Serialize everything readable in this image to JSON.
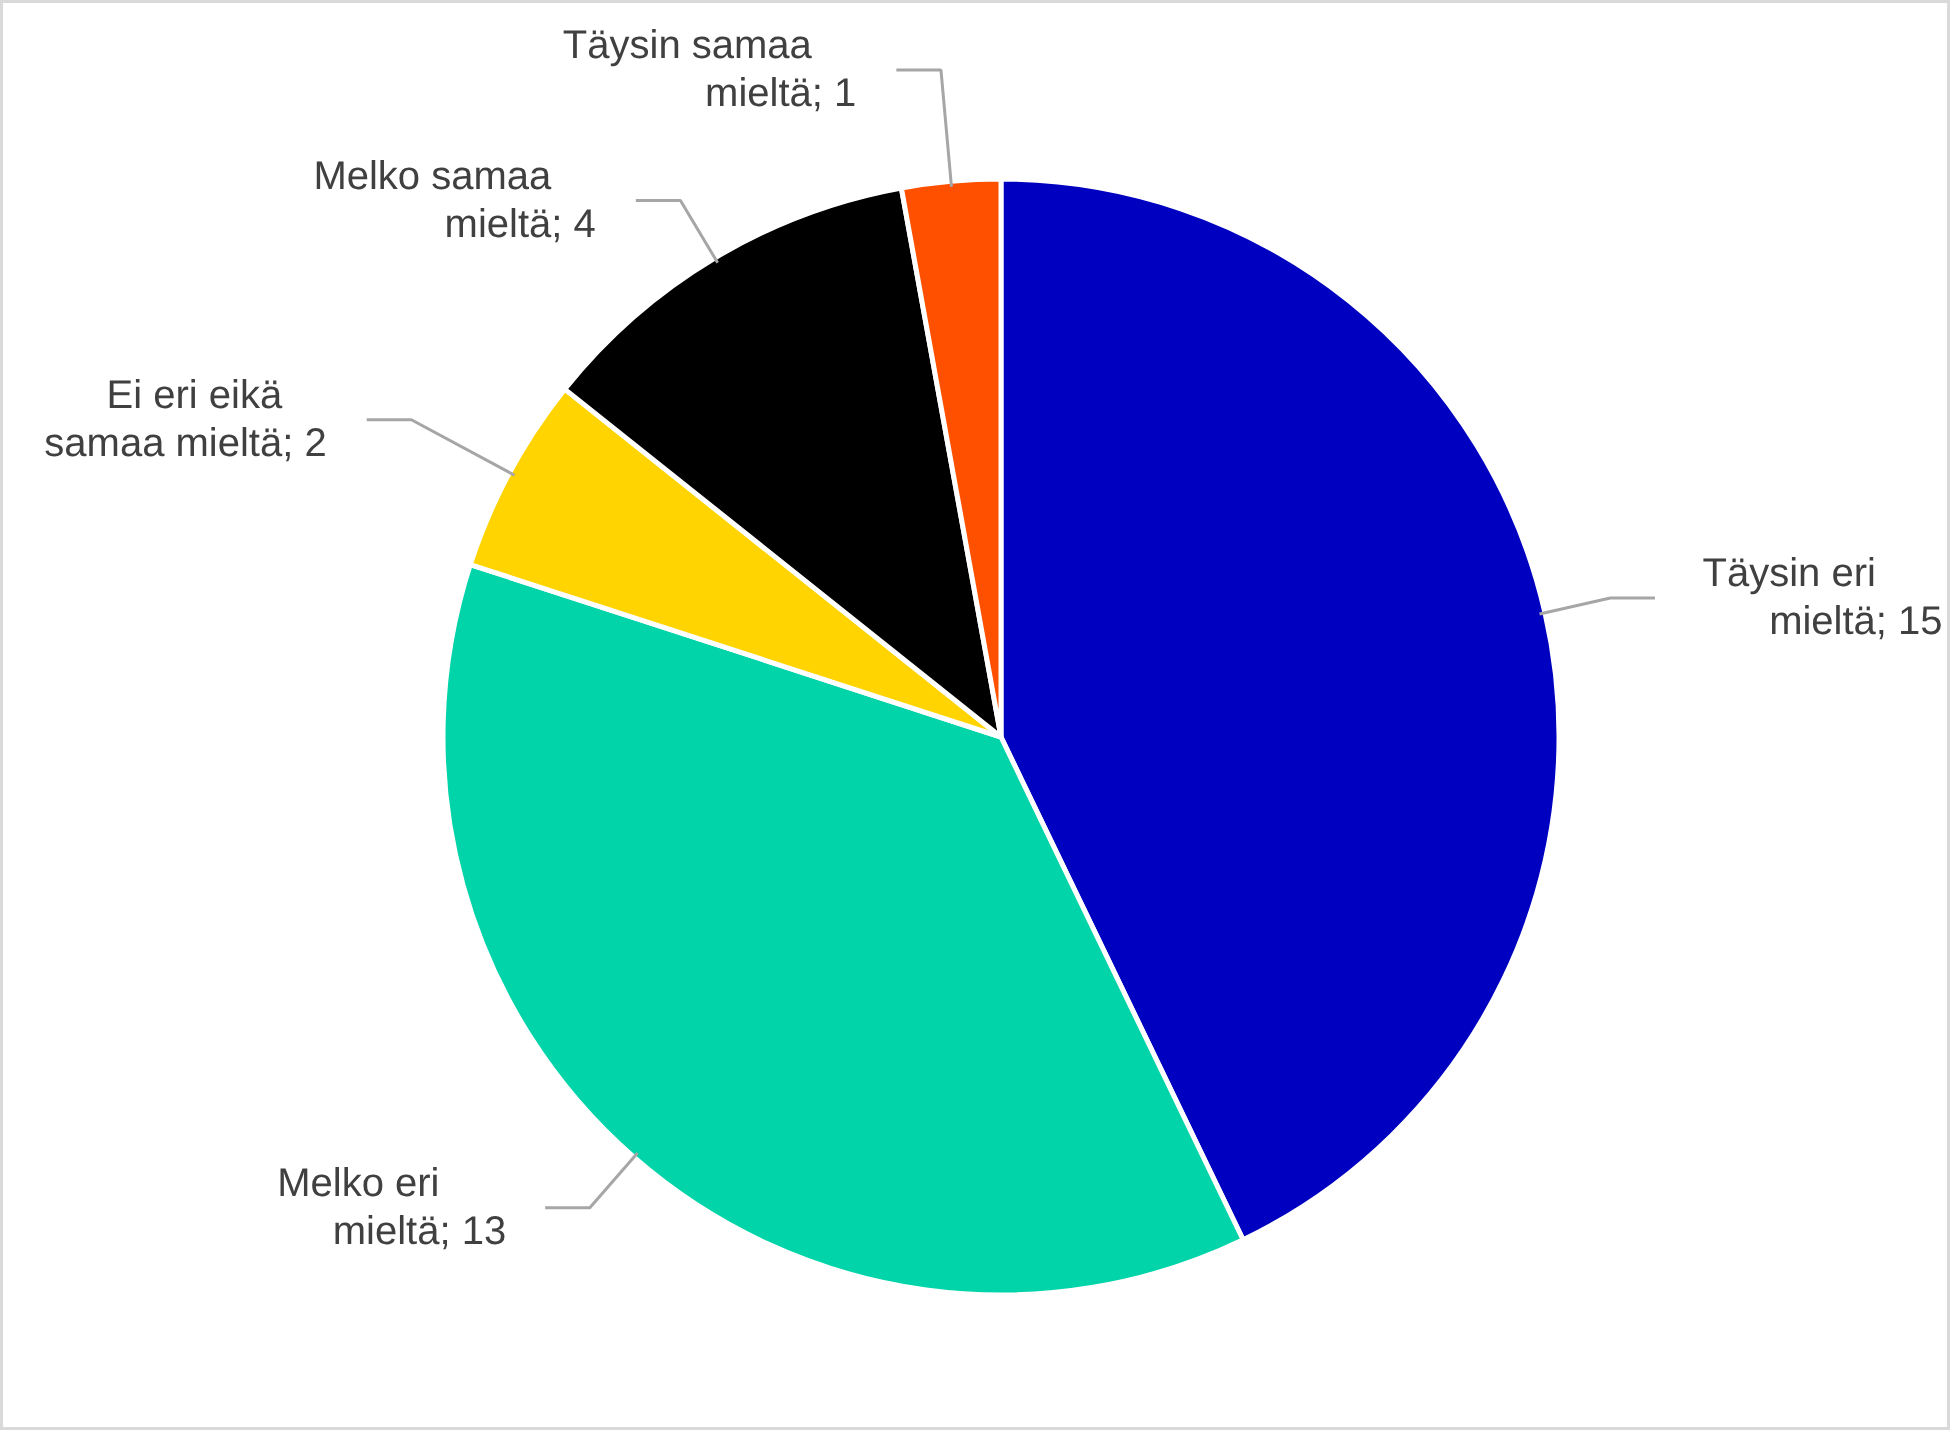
{
  "chart_data": {
    "type": "pie",
    "categories": [
      "Täysin eri mieltä",
      "Melko eri mieltä",
      "Ei eri eikä samaa mieltä",
      "Melko samaa mieltä",
      "Täysin samaa mieltä"
    ],
    "values": [
      15,
      13,
      2,
      4,
      1
    ],
    "value_labels": [
      "; 15",
      "; 13",
      "; 2",
      "; 4",
      "; 1"
    ],
    "colors": [
      "#0000c0",
      "#00d4a8",
      "#ffd400",
      "#000000",
      "#ff5000"
    ],
    "legend": false
  }
}
